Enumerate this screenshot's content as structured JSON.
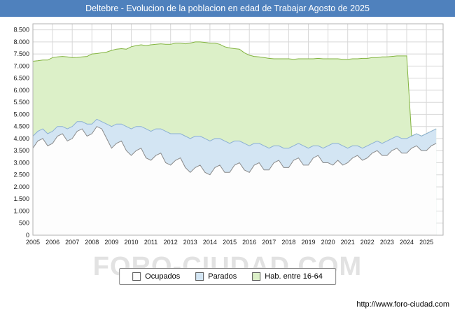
{
  "title": "Deltebre - Evolucion de la poblacion en edad de Trabajar Agosto de 2025",
  "watermark": "FORO-CIUDAD.COM",
  "footer_url": "http://www.foro-ciudad.com",
  "legend": {
    "items": [
      {
        "label": "Ocupados",
        "color": "#fdfdfd"
      },
      {
        "label": "Parados",
        "color": "#d3e5f3"
      },
      {
        "label": "Hab. entre 16-64",
        "color": "#dcf0c8"
      }
    ]
  },
  "colors": {
    "title_bar": "#4f81bd",
    "grid": "#d8d8d8",
    "plot_border": "#b0b0b0",
    "hab_fill": "#dcf0c8",
    "hab_stroke": "#82b33f",
    "parados_fill": "#d3e5f3",
    "parados_stroke": "#8cb0d4",
    "ocupados_fill": "#fdfdfd",
    "ocupados_stroke": "#8a8a8a"
  },
  "chart_data": {
    "type": "area",
    "title": "Deltebre - Evolucion de la poblacion en edad de Trabajar Agosto de 2025",
    "xlabel": "",
    "ylabel": "",
    "grid": true,
    "legend_position": "bottom",
    "stacking_note": "Parados is drawn stacked on top of Ocupados; Hab. entre 16-64 is the total working-age population drawn behind both. Values estimated from gridlines, quarterly resolution.",
    "xlim": [
      2005,
      2025.85
    ],
    "ylim": [
      0,
      8750
    ],
    "x": [
      2005,
      2005.25,
      2005.5,
      2005.75,
      2006,
      2006.25,
      2006.5,
      2006.75,
      2007,
      2007.25,
      2007.5,
      2007.75,
      2008,
      2008.25,
      2008.5,
      2008.75,
      2009,
      2009.25,
      2009.5,
      2009.75,
      2010,
      2010.25,
      2010.5,
      2010.75,
      2011,
      2011.25,
      2011.5,
      2011.75,
      2012,
      2012.25,
      2012.5,
      2012.75,
      2013,
      2013.25,
      2013.5,
      2013.75,
      2014,
      2014.25,
      2014.5,
      2014.75,
      2015,
      2015.25,
      2015.5,
      2015.75,
      2016,
      2016.25,
      2016.5,
      2016.75,
      2017,
      2017.25,
      2017.5,
      2017.75,
      2018,
      2018.25,
      2018.5,
      2018.75,
      2019,
      2019.25,
      2019.5,
      2019.75,
      2020,
      2020.25,
      2020.5,
      2020.75,
      2021,
      2021.25,
      2021.5,
      2021.75,
      2022,
      2022.25,
      2022.5,
      2022.75,
      2023,
      2023.25,
      2023.5,
      2023.75,
      2024,
      2024.25,
      2024.5,
      2024.75,
      2025,
      2025.25,
      2025.5
    ],
    "series": [
      {
        "name": "Ocupados",
        "values": [
          3600,
          3900,
          4000,
          3700,
          3800,
          4100,
          4200,
          3900,
          4000,
          4300,
          4400,
          4100,
          4200,
          4500,
          4400,
          4000,
          3600,
          3800,
          3900,
          3500,
          3300,
          3500,
          3600,
          3200,
          3100,
          3300,
          3400,
          3000,
          2900,
          3100,
          3200,
          2800,
          2600,
          2800,
          2900,
          2600,
          2500,
          2800,
          2900,
          2600,
          2600,
          2900,
          3000,
          2700,
          2600,
          2900,
          3000,
          2700,
          2700,
          3000,
          3100,
          2800,
          2800,
          3100,
          3200,
          2900,
          2900,
          3200,
          3300,
          3000,
          3000,
          2900,
          3100,
          2900,
          3000,
          3200,
          3300,
          3100,
          3200,
          3400,
          3500,
          3300,
          3300,
          3500,
          3600,
          3400,
          3400,
          3600,
          3700,
          3500,
          3500,
          3700,
          3800
        ]
      },
      {
        "name": "Parados",
        "values": [
          500,
          400,
          400,
          500,
          500,
          400,
          300,
          500,
          500,
          400,
          300,
          500,
          400,
          300,
          300,
          600,
          900,
          800,
          700,
          1000,
          1100,
          1000,
          900,
          1200,
          1200,
          1100,
          1000,
          1300,
          1300,
          1100,
          1000,
          1300,
          1400,
          1300,
          1200,
          1400,
          1400,
          1200,
          1100,
          1300,
          1200,
          1000,
          900,
          1100,
          1100,
          900,
          800,
          1000,
          900,
          700,
          600,
          800,
          800,
          600,
          600,
          800,
          700,
          500,
          400,
          600,
          700,
          900,
          700,
          800,
          600,
          500,
          400,
          500,
          500,
          400,
          400,
          500,
          600,
          500,
          500,
          600,
          600,
          500,
          500,
          600,
          700,
          600,
          600
        ]
      },
      {
        "name": "Hab. entre 16-64",
        "values": [
          7200,
          7220,
          7250,
          7250,
          7350,
          7380,
          7400,
          7380,
          7350,
          7360,
          7380,
          7400,
          7500,
          7520,
          7550,
          7580,
          7650,
          7700,
          7720,
          7700,
          7800,
          7850,
          7880,
          7850,
          7880,
          7900,
          7920,
          7900,
          7900,
          7950,
          7950,
          7920,
          7950,
          8000,
          8000,
          7980,
          7950,
          7950,
          7900,
          7800,
          7750,
          7720,
          7700,
          7550,
          7450,
          7400,
          7380,
          7350,
          7320,
          7300,
          7300,
          7300,
          7300,
          7280,
          7300,
          7300,
          7300,
          7300,
          7320,
          7300,
          7300,
          7300,
          7300,
          7280,
          7280,
          7300,
          7300,
          7320,
          7320,
          7350,
          7350,
          7380,
          7380,
          7400,
          7420,
          7420,
          7420,
          4100,
          4200,
          4100,
          4200,
          4300,
          4400
        ]
      }
    ],
    "y_ticks": [
      {
        "v": 0,
        "label": "0"
      },
      {
        "v": 500,
        "label": "500"
      },
      {
        "v": 1000,
        "label": "1.000"
      },
      {
        "v": 1500,
        "label": "1.500"
      },
      {
        "v": 2000,
        "label": "2.000"
      },
      {
        "v": 2500,
        "label": "2.500"
      },
      {
        "v": 3000,
        "label": "3.000"
      },
      {
        "v": 3500,
        "label": "3.500"
      },
      {
        "v": 4000,
        "label": "4.000"
      },
      {
        "v": 4500,
        "label": "4.500"
      },
      {
        "v": 5000,
        "label": "5.000"
      },
      {
        "v": 5500,
        "label": "5.500"
      },
      {
        "v": 6000,
        "label": "6.000"
      },
      {
        "v": 6500,
        "label": "6.500"
      },
      {
        "v": 7000,
        "label": "7.000"
      },
      {
        "v": 7500,
        "label": "7.500"
      },
      {
        "v": 8000,
        "label": "8.000"
      },
      {
        "v": 8500,
        "label": "8.500"
      }
    ],
    "x_ticks": [
      {
        "v": 2005,
        "label": "2005"
      },
      {
        "v": 2006,
        "label": "2006"
      },
      {
        "v": 2007,
        "label": "2007"
      },
      {
        "v": 2008,
        "label": "2008"
      },
      {
        "v": 2009,
        "label": "2009"
      },
      {
        "v": 2010,
        "label": "2010"
      },
      {
        "v": 2011,
        "label": "2011"
      },
      {
        "v": 2012,
        "label": "2012"
      },
      {
        "v": 2013,
        "label": "2013"
      },
      {
        "v": 2014,
        "label": "2014"
      },
      {
        "v": 2015,
        "label": "2015"
      },
      {
        "v": 2016,
        "label": "2016"
      },
      {
        "v": 2017,
        "label": "2017"
      },
      {
        "v": 2018,
        "label": "2018"
      },
      {
        "v": 2019,
        "label": "2019"
      },
      {
        "v": 2020,
        "label": "2020"
      },
      {
        "v": 2021,
        "label": "2021"
      },
      {
        "v": 2022,
        "label": "2022"
      },
      {
        "v": 2023,
        "label": "2023"
      },
      {
        "v": 2024,
        "label": "2024"
      },
      {
        "v": 2025,
        "label": "2025"
      }
    ]
  }
}
